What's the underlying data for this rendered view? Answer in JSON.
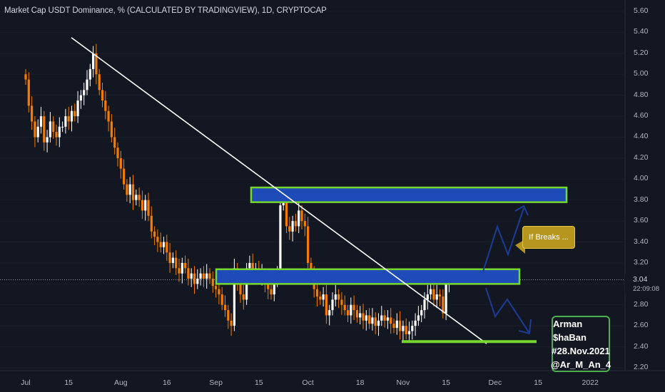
{
  "header": {
    "title": "Market Cap USDT Dominance, % (CALCULATED BY TRADINGVIEW), 1D, CRYPTOCAP"
  },
  "price": {
    "current": "3.04",
    "countdown": "22:09:08"
  },
  "callout": {
    "text": "If Breaks ..."
  },
  "signature": {
    "lines": [
      "Arman $haBan",
      "#28.Nov.2021",
      "@Ar_M_An_4"
    ]
  },
  "colors": {
    "background": "#131722",
    "candle_up": "#ffffff",
    "candle_down": "#f57c00",
    "zone_fill": "#1e4bb8",
    "zone_border": "#76d72f",
    "support_line": "#76d72f",
    "trendline": "#ffffff",
    "arrow": "#1e3c96",
    "callout": "#b5951e"
  },
  "chart_data": {
    "type": "candlestick",
    "title": "Market Cap USDT Dominance, % (CALCULATED BY TRADINGVIEW), 1D, CRYPTOCAP",
    "x_start": "2021-07-01",
    "x_ticks": [
      "Jul",
      "15",
      "Aug",
      "16",
      "Sep",
      "15",
      "Oct",
      "18",
      "Nov",
      "15",
      "Dec",
      "15",
      "2022"
    ],
    "ylim": [
      2.2,
      5.6
    ],
    "y_ticks": [
      "5.60",
      "5.40",
      "5.20",
      "5.00",
      "4.80",
      "4.60",
      "4.40",
      "4.20",
      "4.00",
      "3.80",
      "3.60",
      "3.40",
      "3.20",
      "3.00",
      "2.80",
      "2.60",
      "2.40",
      "2.20"
    ],
    "closes": [
      4.95,
      4.7,
      4.55,
      4.4,
      4.5,
      4.6,
      4.35,
      4.4,
      4.55,
      4.45,
      4.4,
      4.5,
      4.5,
      4.6,
      4.55,
      4.65,
      4.6,
      4.75,
      4.8,
      4.85,
      4.95,
      5.05,
      5.2,
      5.0,
      4.85,
      4.75,
      4.65,
      4.55,
      4.4,
      4.3,
      4.2,
      4.1,
      3.95,
      3.85,
      3.95,
      3.8,
      3.85,
      3.8,
      3.7,
      3.8,
      3.65,
      3.5,
      3.45,
      3.4,
      3.35,
      3.4,
      3.3,
      3.2,
      3.25,
      3.15,
      3.1,
      3.2,
      3.15,
      3.05,
      3.1,
      3.0,
      3.05,
      3.1,
      3.05,
      3.1,
      3.05,
      2.98,
      2.95,
      2.9,
      2.8,
      2.75,
      2.65,
      2.6,
      3.15,
      3.0,
      2.9,
      2.85,
      3.15,
      3.2,
      3.1,
      3.15,
      3.05,
      3.1,
      3.0,
      2.95,
      2.9,
      3.05,
      3.1,
      3.75,
      3.8,
      3.55,
      3.5,
      3.6,
      3.55,
      3.7,
      3.6,
      3.55,
      3.2,
      3.1,
      2.95,
      2.88,
      2.85,
      2.9,
      2.7,
      2.75,
      2.85,
      2.9,
      2.85,
      2.8,
      2.75,
      2.7,
      2.8,
      2.75,
      2.68,
      2.72,
      2.65,
      2.7,
      2.62,
      2.68,
      2.6,
      2.65,
      2.7,
      2.65,
      2.68,
      2.62,
      2.58,
      2.65,
      2.55,
      2.6,
      2.52,
      2.55,
      2.6,
      2.65,
      2.7,
      2.75,
      2.85,
      2.9,
      2.95,
      2.85,
      2.9,
      2.88,
      2.72,
      3.0,
      3.04
    ],
    "annotations": {
      "trendline": {
        "from": [
          "2021-07-17",
          5.35
        ],
        "to": [
          "2021-11-30",
          2.43
        ]
      },
      "upper_zone": [
        3.78,
        3.92
      ],
      "lower_zone": [
        3.0,
        3.14
      ],
      "support": 2.45,
      "callout": "If Breaks ..."
    }
  }
}
